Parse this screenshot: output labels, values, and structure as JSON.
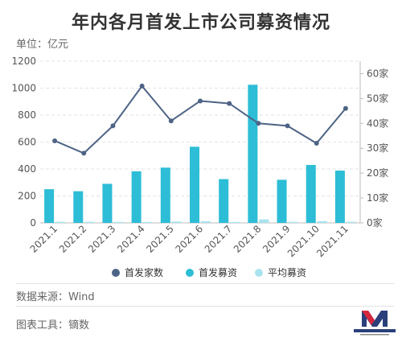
{
  "title": "年内各月首发上市公司募资情况",
  "unit_label": "单位：亿元",
  "source_label": "数据来源：Wind",
  "tool_label": "图表工具：镝数",
  "colors": {
    "line": "#4e6486",
    "bars": "#2dbdd6",
    "avg_bars": "#a9e3ef",
    "grid": "#e3e3e3",
    "axis_text": "#555555"
  },
  "chart_data": {
    "type": "bar+line",
    "categories": [
      "2021.1",
      "2021.2",
      "2021.3",
      "2021.4",
      "2021.5",
      "2021.6",
      "2021.7",
      "2021.8",
      "2021.9",
      "2021.10",
      "2021.11"
    ],
    "left_axis": {
      "ylim": [
        0,
        1200
      ],
      "ticks": [
        0,
        200,
        400,
        600,
        800,
        1000,
        1200
      ]
    },
    "right_axis": {
      "ylim": [
        0,
        65
      ],
      "ticks": [
        "0家",
        "10家",
        "20家",
        "30家",
        "40家",
        "50家",
        "60家"
      ],
      "tick_values": [
        0,
        10,
        20,
        30,
        40,
        50,
        60
      ]
    },
    "series": [
      {
        "name": "首发家数",
        "type": "line",
        "axis": "right",
        "values": [
          33,
          28,
          39,
          55,
          41,
          49,
          48,
          40,
          39,
          32,
          46
        ]
      },
      {
        "name": "首发募资",
        "type": "bar",
        "axis": "left",
        "values": [
          250,
          235,
          290,
          383,
          410,
          565,
          325,
          1025,
          320,
          430,
          388
        ]
      },
      {
        "name": "平均募资",
        "type": "bar",
        "axis": "left",
        "values": [
          8,
          8,
          7,
          7,
          10,
          12,
          7,
          26,
          8,
          13,
          8
        ]
      }
    ],
    "legend_position": "bottom",
    "grid": true
  }
}
